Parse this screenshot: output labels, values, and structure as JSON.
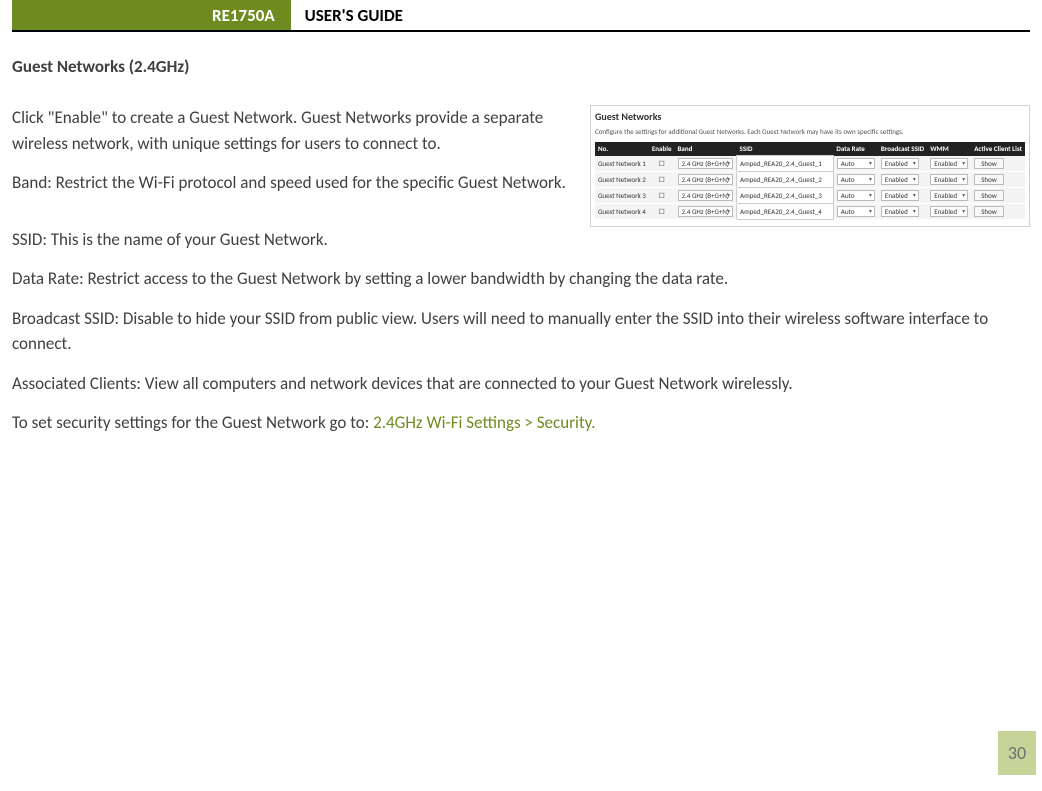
{
  "header": {
    "model": "RE1750A",
    "title": "USER'S GUIDE"
  },
  "page_number": "30",
  "section_title": "Guest Networks (2.4GHz)",
  "paragraphs": {
    "p1": "Click \"Enable\" to create a Guest Network. Guest Networks provide a separate wireless network, with unique settings for users to connect to.",
    "p2": "Band: Restrict the Wi-Fi protocol and speed used for the specific Guest Network.",
    "p3": "SSID: This is the name of your Guest Network.",
    "p4": "Data Rate: Restrict access to the Guest Network by setting a lower bandwidth by changing the data rate.",
    "p5": "Broadcast SSID: Disable to hide your SSID from public view. Users will need to manually enter the SSID into their wireless software interface to connect.",
    "p6": "Associated Clients: View all computers and network devices that are connected to your Guest Network wirelessly.",
    "p7_prefix": "To set security settings for the Guest Network go to: ",
    "p7_link": "2.4GHz Wi-Fi Settings > Security."
  },
  "screenshot": {
    "title": "Guest Networks",
    "desc": "Configure the settings for additional Guest Networks. Each Guest Network may have its own specific settings.",
    "columns": {
      "no": "No.",
      "enable": "Enable",
      "band": "Band",
      "ssid": "SSID",
      "rate": "Data Rate",
      "bcast": "Broadcast SSID",
      "wmm": "WMM",
      "clients": "Active Client List"
    },
    "band_value": "2.4 GHz (B+G+N)",
    "rate_value": "Auto",
    "bcast_value": "Enabled",
    "wmm_value": "Enabled",
    "show_label": "Show",
    "rows": [
      {
        "no": "Guest Network 1",
        "ssid": "Amped_REA20_2.4_Guest_1"
      },
      {
        "no": "Guest Network 2",
        "ssid": "Amped_REA20_2.4_Guest_2"
      },
      {
        "no": "Guest Network 3",
        "ssid": "Amped_REA20_2.4_Guest_3"
      },
      {
        "no": "Guest Network 4",
        "ssid": "Amped_REA20_2.4_Guest_4"
      }
    ]
  },
  "colors": {
    "accent_green": "#6e8b1f",
    "page_badge_bg": "#c6d49a",
    "body_text": "#404040"
  }
}
